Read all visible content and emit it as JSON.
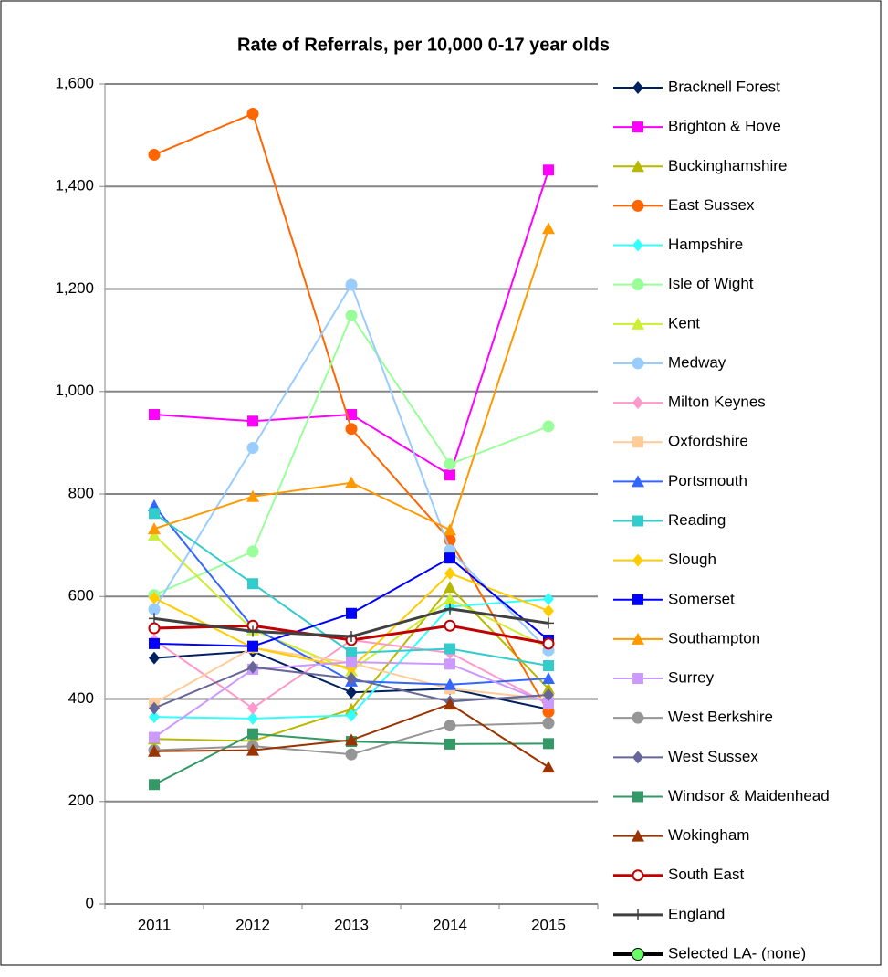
{
  "chart_data": {
    "type": "line",
    "title": "Rate of Referrals, per 10,000 0-17 year olds",
    "categories": [
      "2011",
      "2012",
      "2013",
      "2014",
      "2015"
    ],
    "ylim": [
      0,
      1600
    ],
    "yticks": [
      0,
      200,
      400,
      600,
      800,
      {
        "value": 1000,
        "label": "1,000"
      },
      {
        "value": 1200,
        "label": "1,200"
      },
      {
        "value": 1400,
        "label": "1,400"
      },
      {
        "value": 1600,
        "label": "1,600"
      }
    ],
    "grid": true,
    "legend": "right",
    "series": [
      {
        "name": "Bracknell Forest",
        "color": "#002060",
        "marker": "diamond",
        "values": [
          480,
          493,
          413,
          420,
          380
        ]
      },
      {
        "name": "Brighton & Hove",
        "color": "#ff00ff",
        "marker": "square",
        "values": [
          955,
          942,
          955,
          837,
          1432
        ]
      },
      {
        "name": "Buckinghamshire",
        "color": "#b8b800",
        "marker": "triangle",
        "values": [
          322,
          318,
          380,
          618,
          420
        ]
      },
      {
        "name": "East Sussex",
        "color": "#ff6600",
        "marker": "circle",
        "values": [
          1462,
          1542,
          927,
          710,
          375
        ]
      },
      {
        "name": "Hampshire",
        "color": "#33ffff",
        "marker": "diamond",
        "values": [
          365,
          362,
          368,
          580,
          595
        ]
      },
      {
        "name": "Isle of Wight",
        "color": "#99ff99",
        "marker": "circle",
        "values": [
          603,
          688,
          1148,
          858,
          932
        ]
      },
      {
        "name": "Kent",
        "color": "#ccee33",
        "marker": "triangle",
        "values": [
          720,
          535,
          455,
          595,
          500
        ]
      },
      {
        "name": "Medway",
        "color": "#99ccff",
        "marker": "circle",
        "values": [
          575,
          890,
          1208,
          690,
          495
        ]
      },
      {
        "name": "Milton Keynes",
        "color": "#ff99cc",
        "marker": "diamond",
        "values": [
          515,
          382,
          515,
          490,
          390
        ]
      },
      {
        "name": "Oxfordshire",
        "color": "#ffcc99",
        "marker": "square",
        "values": [
          392,
          500,
          470,
          420,
          400
        ]
      },
      {
        "name": "Portsmouth",
        "color": "#3366ff",
        "marker": "triangle",
        "values": [
          777,
          540,
          435,
          428,
          440
        ]
      },
      {
        "name": "Reading",
        "color": "#33cccc",
        "marker": "square",
        "values": [
          762,
          625,
          490,
          498,
          465
        ]
      },
      {
        "name": "Slough",
        "color": "#ffcc00",
        "marker": "diamond",
        "values": [
          597,
          500,
          460,
          645,
          572
        ]
      },
      {
        "name": "Somerset",
        "color": "#0000ff",
        "marker": "square",
        "values": [
          508,
          503,
          567,
          675,
          515
        ]
      },
      {
        "name": "Southampton",
        "color": "#ff9900",
        "marker": "triangle",
        "values": [
          732,
          795,
          822,
          730,
          1318
        ]
      },
      {
        "name": "Surrey",
        "color": "#cc99ff",
        "marker": "square",
        "values": [
          325,
          458,
          472,
          468,
          392
        ]
      },
      {
        "name": "West Berkshire",
        "color": "#969696",
        "marker": "circle",
        "values": [
          300,
          308,
          292,
          348,
          353
        ]
      },
      {
        "name": "West Sussex",
        "color": "#666699",
        "marker": "diamond",
        "values": [
          382,
          462,
          440,
          395,
          408
        ]
      },
      {
        "name": "Windsor & Maidenhead",
        "color": "#339966",
        "marker": "square",
        "values": [
          233,
          332,
          317,
          312,
          313
        ]
      },
      {
        "name": "Wokingham",
        "color": "#993300",
        "marker": "triangle",
        "values": [
          298,
          300,
          320,
          390,
          267
        ]
      },
      {
        "name": "South East",
        "color": "#c00000",
        "marker": "circle-open",
        "width": 3,
        "values": [
          538,
          543,
          515,
          543,
          508
        ]
      },
      {
        "name": "England",
        "color": "#404040",
        "marker": "plus",
        "width": 3,
        "values": [
          557,
          532,
          522,
          576,
          548
        ]
      },
      {
        "name": "Selected LA- (none)",
        "color": "#000000",
        "marker": "circle",
        "marker_color": "#66ff66",
        "width": 4,
        "values": [
          null,
          null,
          null,
          null,
          null
        ]
      }
    ]
  }
}
